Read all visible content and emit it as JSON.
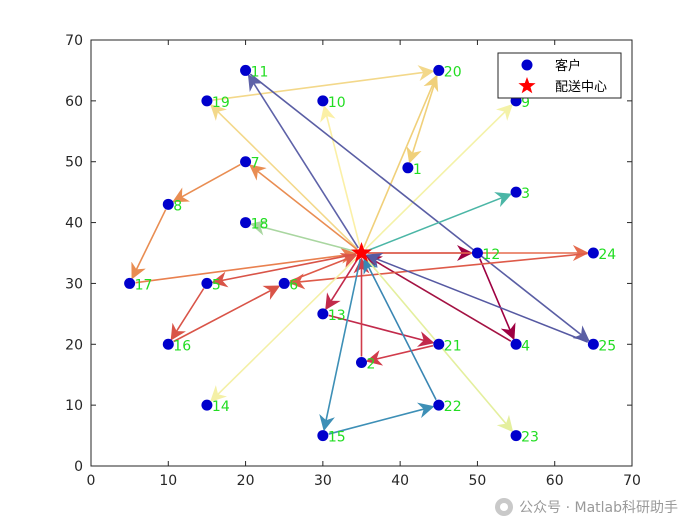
{
  "chart_data": {
    "type": "scatter",
    "xlim": [
      0,
      70
    ],
    "ylim": [
      0,
      70
    ],
    "xticks": [
      0,
      10,
      20,
      30,
      40,
      50,
      60,
      70
    ],
    "yticks": [
      0,
      10,
      20,
      30,
      40,
      50,
      60,
      70
    ],
    "grid": false,
    "legend_position": "top-right",
    "legend": [
      {
        "label": "客户",
        "marker": "circle",
        "color": "#0000cc"
      },
      {
        "label": "配送中心",
        "marker": "star",
        "color": "#ff0000"
      }
    ],
    "depot": {
      "x": 35,
      "y": 35
    },
    "customers": [
      {
        "id": "1",
        "x": 41,
        "y": 49
      },
      {
        "id": "2",
        "x": 35,
        "y": 17
      },
      {
        "id": "3",
        "x": 55,
        "y": 45
      },
      {
        "id": "4",
        "x": 55,
        "y": 20
      },
      {
        "id": "5",
        "x": 15,
        "y": 30
      },
      {
        "id": "6",
        "x": 25,
        "y": 30
      },
      {
        "id": "7",
        "x": 20,
        "y": 50
      },
      {
        "id": "8",
        "x": 10,
        "y": 43
      },
      {
        "id": "9",
        "x": 55,
        "y": 60
      },
      {
        "id": "10",
        "x": 30,
        "y": 60
      },
      {
        "id": "11",
        "x": 20,
        "y": 65
      },
      {
        "id": "12",
        "x": 50,
        "y": 35
      },
      {
        "id": "13",
        "x": 30,
        "y": 25
      },
      {
        "id": "14",
        "x": 15,
        "y": 10
      },
      {
        "id": "15",
        "x": 30,
        "y": 5
      },
      {
        "id": "16",
        "x": 10,
        "y": 20
      },
      {
        "id": "17",
        "x": 5,
        "y": 30
      },
      {
        "id": "18",
        "x": 20,
        "y": 40
      },
      {
        "id": "19",
        "x": 15,
        "y": 60
      },
      {
        "id": "20",
        "x": 45,
        "y": 65
      },
      {
        "id": "21",
        "x": 45,
        "y": 20
      },
      {
        "id": "22",
        "x": 45,
        "y": 10
      },
      {
        "id": "23",
        "x": 55,
        "y": 5
      },
      {
        "id": "24",
        "x": 65,
        "y": 35
      },
      {
        "id": "25",
        "x": 65,
        "y": 20
      }
    ],
    "routes": [
      {
        "color": "#f0d07a",
        "stops": [
          "0",
          "20",
          "1"
        ]
      },
      {
        "color": "#f3d88a",
        "stops": [
          "0",
          "19",
          "20"
        ]
      },
      {
        "color": "#fbf0a6",
        "stops": [
          "0",
          "10"
        ]
      },
      {
        "color": "#f4f2a8",
        "stops": [
          "0",
          "9"
        ]
      },
      {
        "color": "#5e62a8",
        "stops": [
          "0",
          "11"
        ]
      },
      {
        "color": "#5a5ea4",
        "stops": [
          "11",
          "25"
        ]
      },
      {
        "color": "#e98d52",
        "stops": [
          "0",
          "7",
          "8",
          "17"
        ]
      },
      {
        "color": "#e9804f",
        "stops": [
          "17",
          "0"
        ]
      },
      {
        "color": "#4bb6a6",
        "stops": [
          "0",
          "3"
        ]
      },
      {
        "color": "#a9d6a0",
        "stops": [
          "0",
          "18"
        ]
      },
      {
        "color": "#9e0142",
        "stops": [
          "0",
          "12",
          "4"
        ]
      },
      {
        "color": "#a41243",
        "stops": [
          "4",
          "0"
        ]
      },
      {
        "color": "#e56b4e",
        "stops": [
          "0",
          "24"
        ]
      },
      {
        "color": "#de5a49",
        "stops": [
          "24",
          "6",
          "0"
        ]
      },
      {
        "color": "#d95448",
        "stops": [
          "0",
          "5",
          "16",
          "6"
        ]
      },
      {
        "color": "#5659a2",
        "stops": [
          "25",
          "0"
        ]
      },
      {
        "color": "#c22a4b",
        "stops": [
          "0",
          "13",
          "21"
        ]
      },
      {
        "color": "#d13c4b",
        "stops": [
          "21",
          "2",
          "0"
        ]
      },
      {
        "color": "#3d8fb6",
        "stops": [
          "0",
          "15",
          "22"
        ]
      },
      {
        "color": "#3a86b3",
        "stops": [
          "22",
          "0"
        ]
      },
      {
        "color": "#f4f0a6",
        "stops": [
          "0",
          "14"
        ]
      },
      {
        "color": "#e4ef9e",
        "stops": [
          "0",
          "23"
        ]
      }
    ]
  },
  "colors": {
    "customer": "#0000cc",
    "depot": "#ff0000",
    "label": "#22dd22"
  },
  "watermark": {
    "icon": "wechat-icon",
    "text": "公众号 · Matlab科研助手"
  }
}
